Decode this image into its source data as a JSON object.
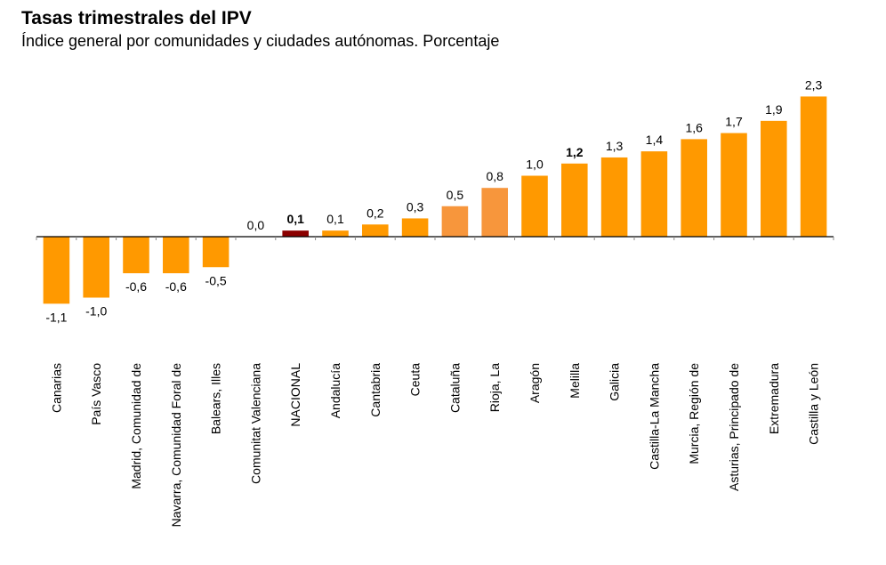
{
  "header": {
    "title": "Tasas trimestrales del IPV",
    "subtitle": "Índice general por comunidades y ciudades autónomas. Porcentaje"
  },
  "colors": {
    "default": "#FF9900",
    "light": "#F7963C",
    "national": "#8B0000",
    "axis": "#000000"
  },
  "chart_data": {
    "type": "bar",
    "title": "Tasas trimestrales del IPV",
    "subtitle": "Índice general por comunidades y ciudades autónomas. Porcentaje",
    "xlabel": "",
    "ylabel": "",
    "ylim": [
      -1.4,
      2.5
    ],
    "grid": false,
    "legend": "none",
    "categories": [
      "Canarias",
      "País Vasco",
      "Madrid, Comunidad de",
      "Navarra, Comunidad Foral de",
      "Balears, Illes",
      "Comunitat Valenciana",
      "NACIONAL",
      "Andalucía",
      "Cantabria",
      "Ceuta",
      "Cataluña",
      "Rioja, La",
      "Aragón",
      "Melilla",
      "Galicia",
      "Castilla-La Mancha",
      "Murcia, Región de",
      "Asturias, Principado de",
      "Extremadura",
      "Castilla y León"
    ],
    "values": [
      -1.1,
      -1.0,
      -0.6,
      -0.6,
      -0.5,
      0.0,
      0.1,
      0.1,
      0.2,
      0.3,
      0.5,
      0.8,
      1.0,
      1.2,
      1.3,
      1.4,
      1.6,
      1.7,
      1.9,
      2.3
    ],
    "labels": [
      "-1,1",
      "-1,0",
      "-0,6",
      "-0,6",
      "-0,5",
      "0,0",
      "0,1",
      "0,1",
      "0,2",
      "0,3",
      "0,5",
      "0,8",
      "1,0",
      "1,2",
      "1,3",
      "1,4",
      "1,6",
      "1,7",
      "1,9",
      "2,3"
    ],
    "bold_labels": [
      "NACIONAL",
      "Melilla"
    ],
    "bar_color_keys": [
      "default",
      "default",
      "default",
      "default",
      "default",
      "default",
      "national",
      "default",
      "default",
      "default",
      "light",
      "light",
      "default",
      "default",
      "default",
      "default",
      "default",
      "default",
      "default",
      "default"
    ]
  }
}
